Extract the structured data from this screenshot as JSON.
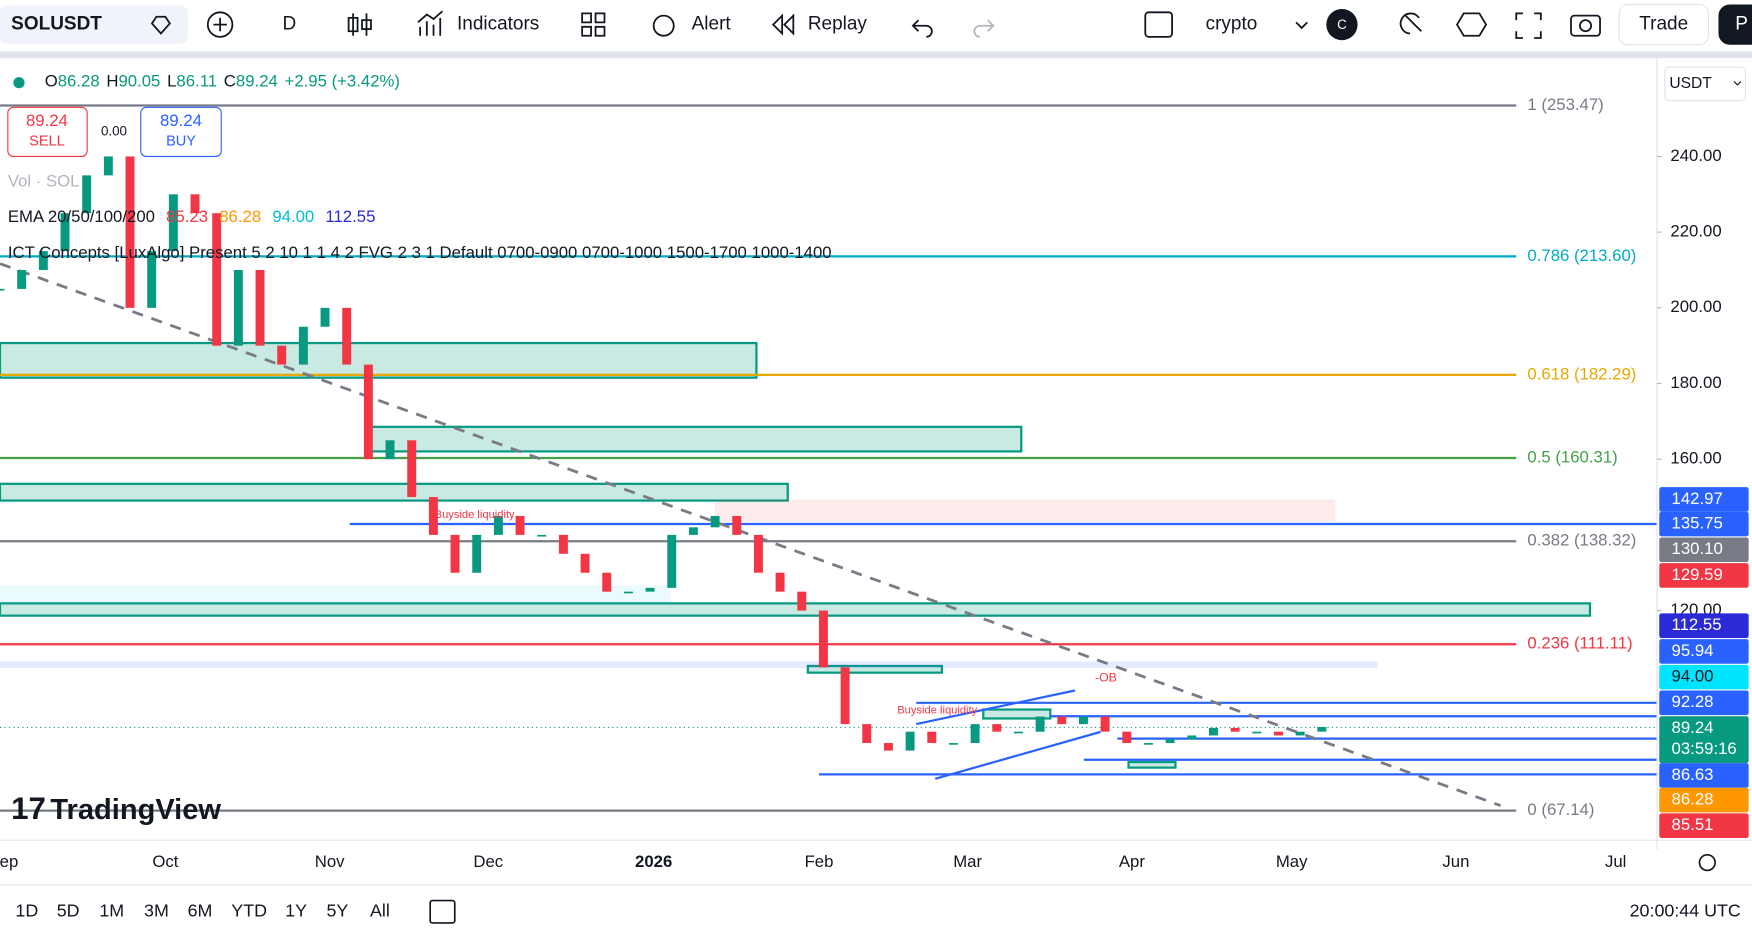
{
  "toolbar": {
    "symbol": "SOLUSDT",
    "interval": "D",
    "indicators": "Indicators",
    "alert": "Alert",
    "replay": "Replay",
    "layout": "crypto",
    "avatar": "C",
    "trade": "Trade",
    "cut": "P"
  },
  "legend": {
    "ohlc": [
      {
        "label": "O",
        "value": "86.28"
      },
      {
        "label": "H",
        "value": "90.05"
      },
      {
        "label": "L",
        "value": "86.11"
      },
      {
        "label": "C",
        "value": "89.24"
      }
    ],
    "change": "+2.95 (+3.42%)",
    "sell": {
      "price": "89.24",
      "label": "SELL"
    },
    "buy": {
      "price": "89.24",
      "label": "BUY"
    },
    "spread": "0.00",
    "volume": "Vol · SOL",
    "ema": {
      "label": "EMA 20/50/100/200",
      "values": [
        {
          "text": "85.23",
          "color": "#f23645"
        },
        {
          "text": "86.28",
          "color": "#ff9800"
        },
        {
          "text": "94.00",
          "color": "#00bcd4"
        },
        {
          "text": "112.55",
          "color": "#2a2ad6"
        }
      ]
    },
    "ict": "ICT Concepts [LuxAlgo] Present 5 2 10 1 1 4 2 FVG 2 3 1 Default 0700-0900 0700-1000 1500-1700 1000-1400"
  },
  "chart_data": {
    "type": "candlestick",
    "currency": "USDT",
    "closes": [
      205,
      210,
      215,
      225,
      235,
      240,
      200,
      215,
      230,
      225,
      190,
      210,
      190,
      185,
      195,
      200,
      185,
      160,
      165,
      150,
      140,
      130,
      140,
      145,
      140,
      140,
      135,
      130,
      125,
      125,
      126,
      140,
      142,
      145,
      140,
      130,
      125,
      120,
      105,
      90,
      85,
      83,
      88,
      85,
      85,
      90,
      88,
      88,
      92,
      90,
      92,
      88,
      85,
      85,
      86,
      87,
      89,
      88,
      88,
      87,
      88,
      89.24
    ],
    "up_color": "#089981",
    "down_color": "#f23645",
    "ylim": [
      59.9,
      265.1
    ],
    "yticks": [
      {
        "value": 240,
        "label": "240.00"
      },
      {
        "value": 220,
        "label": "220.00"
      },
      {
        "value": 200,
        "label": "200.00"
      },
      {
        "value": 180,
        "label": "180.00"
      },
      {
        "value": 160,
        "label": "160.00"
      },
      {
        "value": 120,
        "label": "120.00"
      }
    ],
    "x_labels": [
      "Sep",
      "Oct",
      "Nov",
      "Dec",
      "2026",
      "Feb",
      "Mar",
      "Apr",
      "May",
      "Jun",
      "Jul"
    ],
    "fib_levels": [
      {
        "label": "1 (253.47)",
        "value": 253.47,
        "color": "#787b86"
      },
      {
        "label": "0.786 (213.60)",
        "value": 213.6,
        "color": "#00acc1"
      },
      {
        "label": "0.618 (182.29)",
        "value": 182.29,
        "color": "#e6a800"
      },
      {
        "label": "0.5 (160.31)",
        "value": 160.31,
        "color": "#43a047"
      },
      {
        "label": "0.382 (138.32)",
        "value": 138.32,
        "color": "#787b86"
      },
      {
        "label": "0.236 (111.11)",
        "value": 111.11,
        "color": "#f23645"
      },
      {
        "label": "0 (67.14)",
        "value": 67.14,
        "color": "#787b86"
      }
    ],
    "price_badges": [
      {
        "label": "142.97",
        "color": "#2962ff"
      },
      {
        "label": "135.75",
        "color": "#2962ff"
      },
      {
        "label": "130.10",
        "color": "#787b86"
      },
      {
        "label": "129.59",
        "color": "#f23645"
      },
      {
        "label": "112.55",
        "color": "#2a2ad6"
      },
      {
        "label": "95.94",
        "color": "#2962ff"
      },
      {
        "label": "94.00",
        "color": "#00e5ff"
      },
      {
        "label": "92.28",
        "color": "#2962ff"
      },
      {
        "label": "89.24",
        "color": "#089981"
      },
      {
        "label": "86.63",
        "color": "#2962ff"
      },
      {
        "label": "86.28",
        "color": "#ff9800"
      },
      {
        "label": "85.51",
        "color": "#f23645"
      }
    ],
    "countdown": "03:59:16",
    "annotations": [
      "Buyside liquidity",
      "Buyside liquidity",
      "-OB"
    ]
  },
  "logo": "TradingView",
  "bottom": {
    "ranges": [
      "1D",
      "5D",
      "1M",
      "3M",
      "6M",
      "YTD",
      "1Y",
      "5Y",
      "All"
    ],
    "clock": "20:00:44 UTC"
  }
}
